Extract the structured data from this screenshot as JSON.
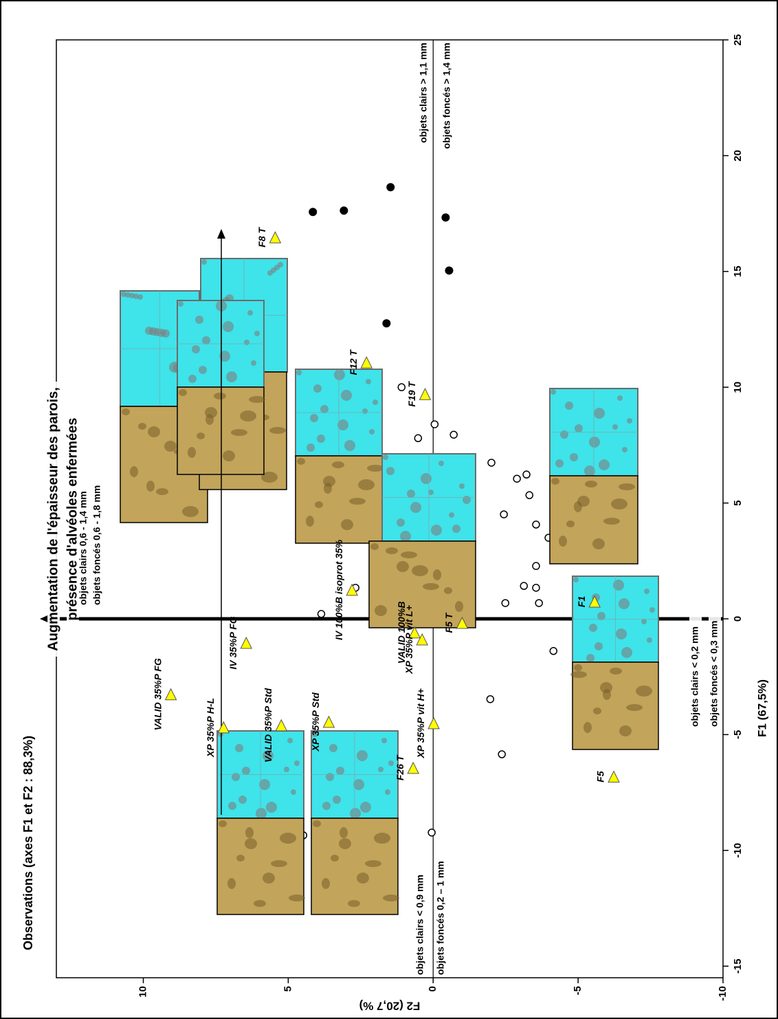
{
  "chart_data": {
    "type": "scatter",
    "title": "Observations (axes F1 et F2 : 88,3%)",
    "x_label": "F1 (67,5%)",
    "y_label": "F2 (20,7 %)",
    "xlim": [
      -15.5,
      25
    ],
    "xticks": [
      -15,
      -10,
      -5,
      0,
      5,
      10,
      15,
      20,
      25
    ],
    "ylim": [
      -10,
      13
    ],
    "yticks": [
      -10,
      -5,
      0,
      5,
      10
    ],
    "series": [
      {
        "marker": "open-circle",
        "color": "#000000",
        "x": [
          7.27,
          6.94,
          0.21,
          5.7,
          4.9,
          5.7,
          1.34,
          5.64,
          1.63,
          4.96,
          10.0,
          7.8,
          2.28,
          4.27,
          -9.23,
          8.4,
          1.81,
          7.95,
          3.56,
          6.77,
          -3.47,
          6.74,
          -5.85,
          4.51,
          0.68,
          6.05,
          1.42,
          6.23,
          5.34,
          1.34,
          2.28,
          4.07,
          0.68,
          3.5,
          -1.39,
          -9.35
        ],
        "values": [
          7.7,
          4.34,
          3.86,
          3.84,
          3.6,
          3.01,
          2.68,
          2.37,
          1.78,
          1.66,
          1.09,
          0.52,
          0.43,
          0.31,
          0.05,
          -0.05,
          -0.09,
          -0.71,
          -1.23,
          -1.26,
          -1.97,
          -2.01,
          -2.37,
          -2.44,
          -2.49,
          -2.89,
          -3.13,
          -3.22,
          -3.32,
          -3.55,
          -3.55,
          -3.55,
          -3.65,
          -3.98,
          -4.15,
          4.48
        ]
      },
      {
        "marker": "filled-circle",
        "color": "#000000",
        "x": [
          18.64,
          17.63,
          17.57,
          17.33,
          15.04,
          12.76,
          6.23,
          6.17
        ],
        "values": [
          1.47,
          3.08,
          4.15,
          -0.43,
          -0.55,
          1.61,
          6.99,
          6.75
        ]
      },
      {
        "marker": "triangle",
        "color": "#ffff00",
        "x": [
          16.47,
          11.07,
          9.7,
          1.25,
          -0.18,
          0.74,
          -0.59,
          -0.89,
          -1.04,
          -4.45,
          -4.6,
          -4.69,
          -3.26,
          -4.51,
          -6.44,
          -6.82
        ],
        "values": [
          5.45,
          2.3,
          0.28,
          2.8,
          -1.0,
          -5.57,
          0.64,
          0.38,
          6.45,
          3.6,
          5.24,
          7.23,
          9.05,
          -0.02,
          0.69,
          -6.23
        ],
        "labels": [
          "F8 T",
          "F12 T",
          "F19 T",
          "IV 100%B isoprot 35%",
          "F5 T",
          "F1",
          "VALID 100%B",
          "XP 35%P vit L+",
          "IV 35%P FG",
          "XP 35%P Std",
          "VALID 35%P Std",
          "XP 35%P H-L",
          "VALID 35%P FG",
          "XP 35%P vit H+",
          "F26 T",
          "F5"
        ]
      }
    ],
    "annotations": [
      "Augmentation de l'épaisseur des parois,",
      "présence d'alvéoles enfermées",
      "objets clairs 0,6 - 1,4 mm",
      "objets foncés 0,6 - 1,8 mm",
      "objets clairs > 1,1 mm",
      "objets foncés > 1,4 mm",
      "objets clairs < 0,2 mm",
      "objets foncés < 0,3 mm",
      "objets clairs < 0,9 mm",
      "objets foncés 0,2 – 1 mm"
    ]
  }
}
